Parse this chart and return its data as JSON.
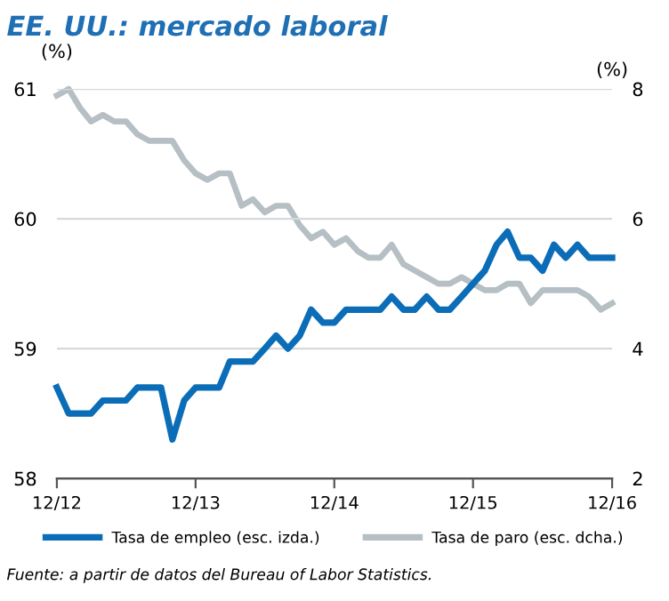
{
  "chart_data": {
    "type": "line",
    "title": "EE. UU.: mercado laboral",
    "ylabel": "(%)",
    "y2label": "(%)",
    "x": [
      "2012-12",
      "2013-01",
      "2013-02",
      "2013-03",
      "2013-04",
      "2013-05",
      "2013-06",
      "2013-07",
      "2013-08",
      "2013-09",
      "2013-10",
      "2013-11",
      "2013-12",
      "2014-01",
      "2014-02",
      "2014-03",
      "2014-04",
      "2014-05",
      "2014-06",
      "2014-07",
      "2014-08",
      "2014-09",
      "2014-10",
      "2014-11",
      "2014-12",
      "2015-01",
      "2015-02",
      "2015-03",
      "2015-04",
      "2015-05",
      "2015-06",
      "2015-07",
      "2015-08",
      "2015-09",
      "2015-10",
      "2015-11",
      "2015-12",
      "2016-01",
      "2016-02",
      "2016-03",
      "2016-04",
      "2016-05",
      "2016-06",
      "2016-07",
      "2016-08",
      "2016-09",
      "2016-10",
      "2016-11",
      "2016-12"
    ],
    "series": [
      {
        "name": "Tasa de empleo (esc. izda.)",
        "color": "#0b6db7",
        "values": [
          58.7,
          58.5,
          58.5,
          58.5,
          58.6,
          58.6,
          58.6,
          58.7,
          58.7,
          58.7,
          58.3,
          58.6,
          58.7,
          58.7,
          58.7,
          58.9,
          58.9,
          58.9,
          59.0,
          59.1,
          59.0,
          59.1,
          59.3,
          59.2,
          59.2,
          59.3,
          59.3,
          59.3,
          59.3,
          59.4,
          59.3,
          59.3,
          59.4,
          59.3,
          59.3,
          59.4,
          59.5,
          59.6,
          59.8,
          59.9,
          59.7,
          59.7,
          59.6,
          59.8,
          59.7,
          59.8,
          59.7,
          59.7,
          59.7
        ]
      },
      {
        "name": "Tasa de paro (esc. dcha.)",
        "color": "#b5bfc4",
        "axis": "y2",
        "values": [
          7.9,
          8.0,
          7.7,
          7.5,
          7.6,
          7.5,
          7.5,
          7.3,
          7.2,
          7.2,
          7.2,
          6.9,
          6.7,
          6.6,
          6.7,
          6.7,
          6.2,
          6.3,
          6.1,
          6.2,
          6.2,
          5.9,
          5.7,
          5.8,
          5.6,
          5.7,
          5.5,
          5.4,
          5.4,
          5.6,
          5.3,
          5.2,
          5.1,
          5.0,
          5.0,
          5.1,
          5.0,
          4.9,
          4.9,
          5.0,
          5.0,
          4.7,
          4.9,
          4.9,
          4.9,
          4.9,
          4.8,
          4.6,
          4.7
        ]
      }
    ],
    "xlim": [
      "2012-12",
      "2016-12"
    ],
    "xticks": [
      {
        "value": "2012-12",
        "label": "12/12"
      },
      {
        "value": "2013-12",
        "label": "12/13"
      },
      {
        "value": "2014-12",
        "label": "12/14"
      },
      {
        "value": "2015-12",
        "label": "12/15"
      },
      {
        "value": "2016-12",
        "label": "12/16"
      }
    ],
    "ylim": [
      58,
      61
    ],
    "yticks": [
      58,
      59,
      60,
      61
    ],
    "y2lim": [
      2,
      8
    ],
    "y2ticks": [
      2,
      4,
      6,
      8
    ],
    "grid": "y",
    "legend": "bottom",
    "line_style": "solid",
    "marker": "none",
    "annotations": [
      "Fuente: a partir de datos del Bureau of Labor Statistics."
    ]
  }
}
